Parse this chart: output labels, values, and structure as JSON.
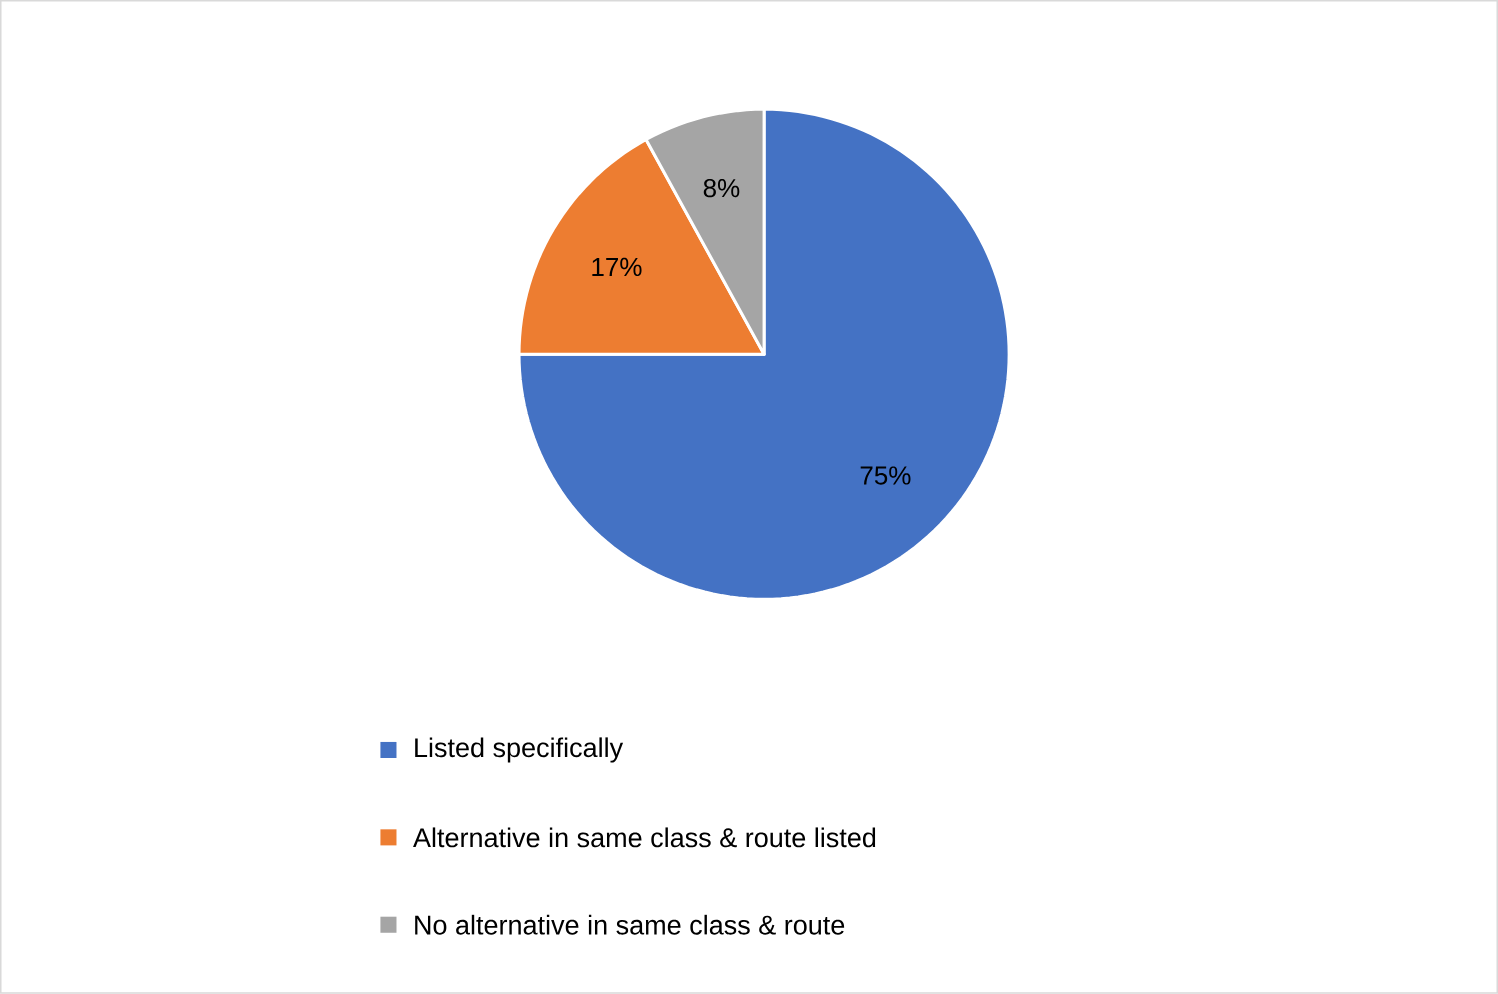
{
  "chart_data": {
    "type": "pie",
    "categories": [
      "Listed specifically",
      "Alternative in same class & route listed",
      "No alternative in same class & route"
    ],
    "values": [
      75,
      17,
      8
    ],
    "colors": [
      "#4472c4",
      "#ed7d31",
      "#a5a5a5"
    ],
    "value_labels": [
      "75%",
      "17%",
      "8%"
    ],
    "legend": "bottom"
  }
}
